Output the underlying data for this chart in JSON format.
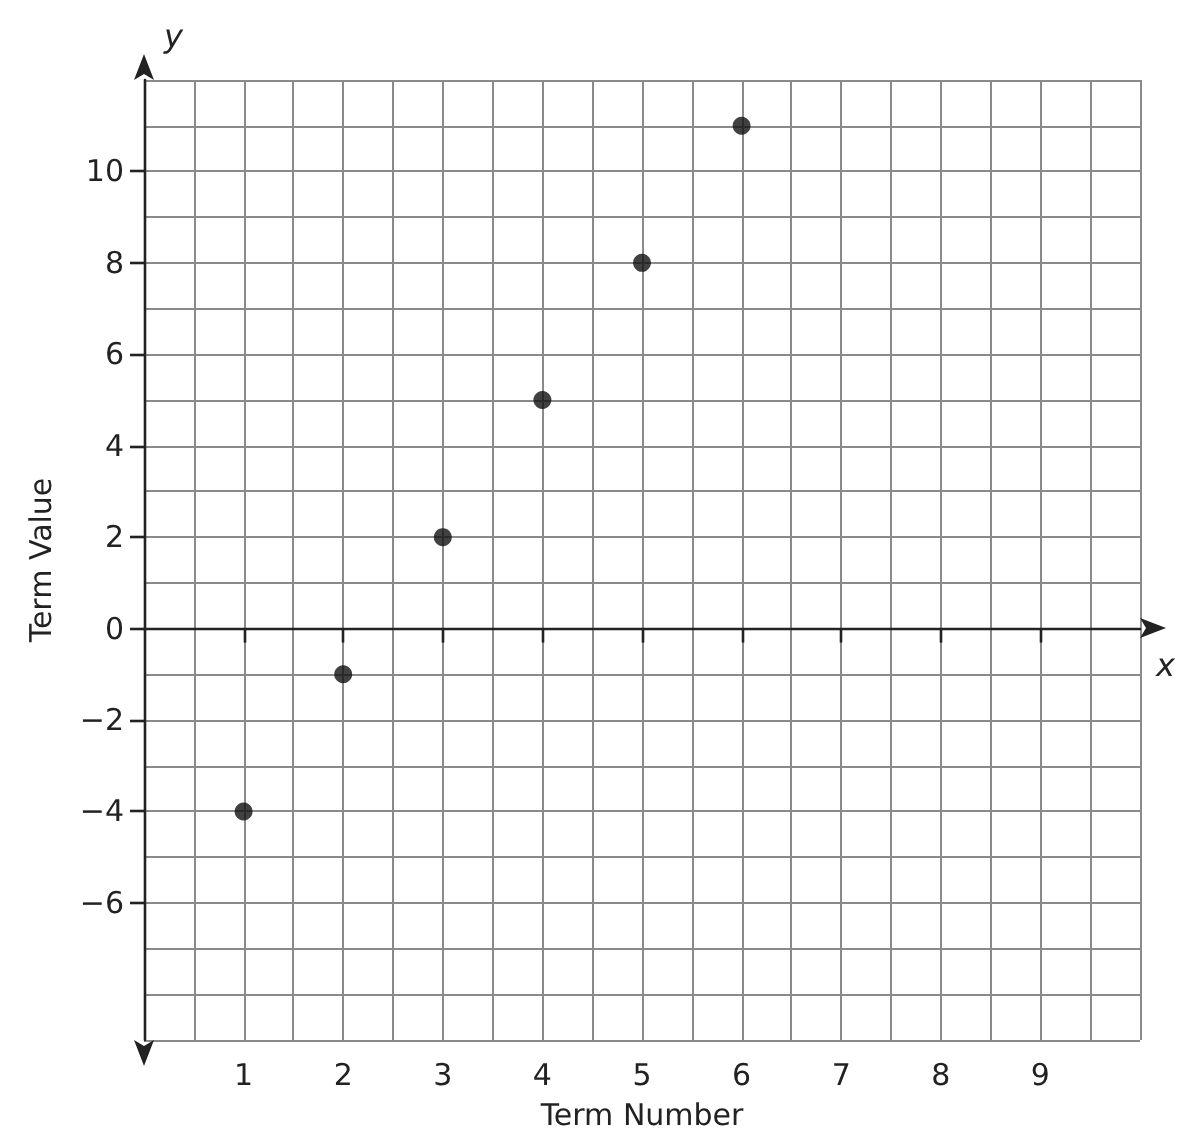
{
  "chart_data": {
    "type": "scatter",
    "xlabel": "Term Number",
    "ylabel": "Term Value",
    "annotations": [
      "x",
      "y"
    ],
    "x": [
      1,
      2,
      3,
      4,
      5,
      6
    ],
    "series": [
      {
        "color": "#111111",
        "values": [
          -4,
          -1,
          2,
          5,
          8,
          11
        ]
      }
    ],
    "xlim": [
      0,
      10
    ],
    "xticks": [
      1,
      2,
      3,
      4,
      5,
      6,
      7,
      8,
      9
    ],
    "ylim": [
      -9,
      12
    ],
    "yticks": [
      {
        "value": -6,
        "label": "−6"
      },
      {
        "value": -4,
        "label": "−4"
      },
      {
        "value": -2,
        "label": "−2"
      },
      0,
      2,
      4,
      6,
      8,
      10
    ],
    "grid": true,
    "marker": "circle"
  }
}
